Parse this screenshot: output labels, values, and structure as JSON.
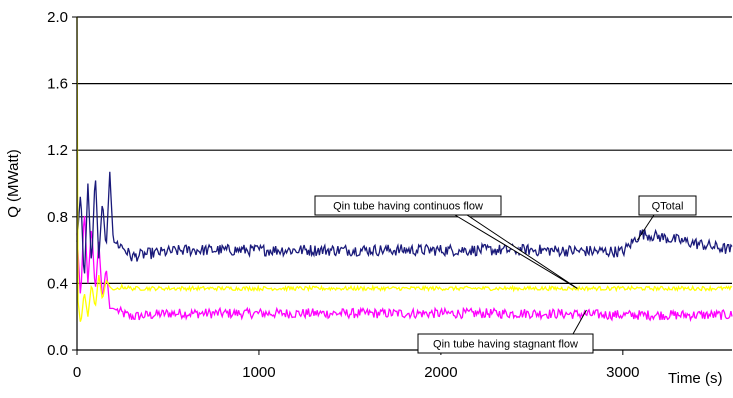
{
  "chart_data": {
    "type": "line",
    "title": "",
    "xlabel": "Time (s)",
    "ylabel": "Q (MWatt)",
    "xlim": [
      0,
      3600
    ],
    "ylim": [
      0,
      2.0
    ],
    "x_ticks": [
      0,
      1000,
      2000,
      3000
    ],
    "x_tick_labels": [
      "0",
      "1000",
      "2000",
      "3000"
    ],
    "y_ticks": [
      0,
      0.4,
      0.8,
      1.2,
      1.6,
      2.0
    ],
    "y_tick_labels": [
      "0.0",
      "0.4",
      "0.8",
      "1.2",
      "1.6",
      "2.0"
    ],
    "grid": "horizontal",
    "legend": "none",
    "colors": {
      "qtotal": "#1a1a7a",
      "continuous": "#ffff00",
      "stagnant": "#ff00ff",
      "grid": "#000000",
      "axis": "#000000"
    },
    "series": [
      {
        "key": "qtotal",
        "x": [
          0,
          20,
          40,
          60,
          80,
          100,
          120,
          140,
          160,
          180,
          200,
          250,
          300,
          400,
          600,
          1000,
          1500,
          2000,
          2500,
          3000,
          3100,
          3600
        ],
        "y": [
          0.65,
          0.95,
          0.4,
          1.0,
          0.5,
          1.07,
          0.55,
          0.9,
          0.6,
          1.07,
          0.65,
          0.62,
          0.56,
          0.58,
          0.6,
          0.6,
          0.6,
          0.6,
          0.6,
          0.59,
          0.7,
          0.6
        ]
      },
      {
        "key": "continuous",
        "x": [
          0,
          5,
          20,
          40,
          60,
          80,
          100,
          120,
          140,
          160,
          180,
          200,
          250,
          300,
          500,
          1000,
          2000,
          3000,
          3600
        ],
        "y": [
          2.0,
          0.3,
          0.15,
          0.35,
          0.2,
          0.4,
          0.25,
          0.45,
          0.3,
          0.42,
          0.38,
          0.36,
          0.38,
          0.37,
          0.37,
          0.37,
          0.37,
          0.37,
          0.37
        ]
      },
      {
        "key": "stagnant",
        "x": [
          0,
          20,
          40,
          60,
          80,
          100,
          120,
          140,
          160,
          180,
          200,
          250,
          300,
          500,
          1000,
          1500,
          2000,
          2500,
          3000,
          3600
        ],
        "y": [
          0.7,
          0.3,
          0.85,
          0.4,
          0.75,
          0.35,
          0.65,
          0.3,
          0.5,
          0.25,
          0.25,
          0.22,
          0.2,
          0.22,
          0.22,
          0.22,
          0.22,
          0.22,
          0.21,
          0.21
        ]
      }
    ],
    "annotations": [
      {
        "key": "continuous_label",
        "text": "Qin tube having continuos flow",
        "target_x": 2750,
        "target_y": 0.37
      },
      {
        "key": "qtotal_label",
        "text": "QTotal",
        "target_x": 3080,
        "target_y": 0.66
      },
      {
        "key": "stagnant_label",
        "text": "Qin tube having stagnant flow",
        "target_x": 2800,
        "target_y": 0.24
      }
    ]
  }
}
